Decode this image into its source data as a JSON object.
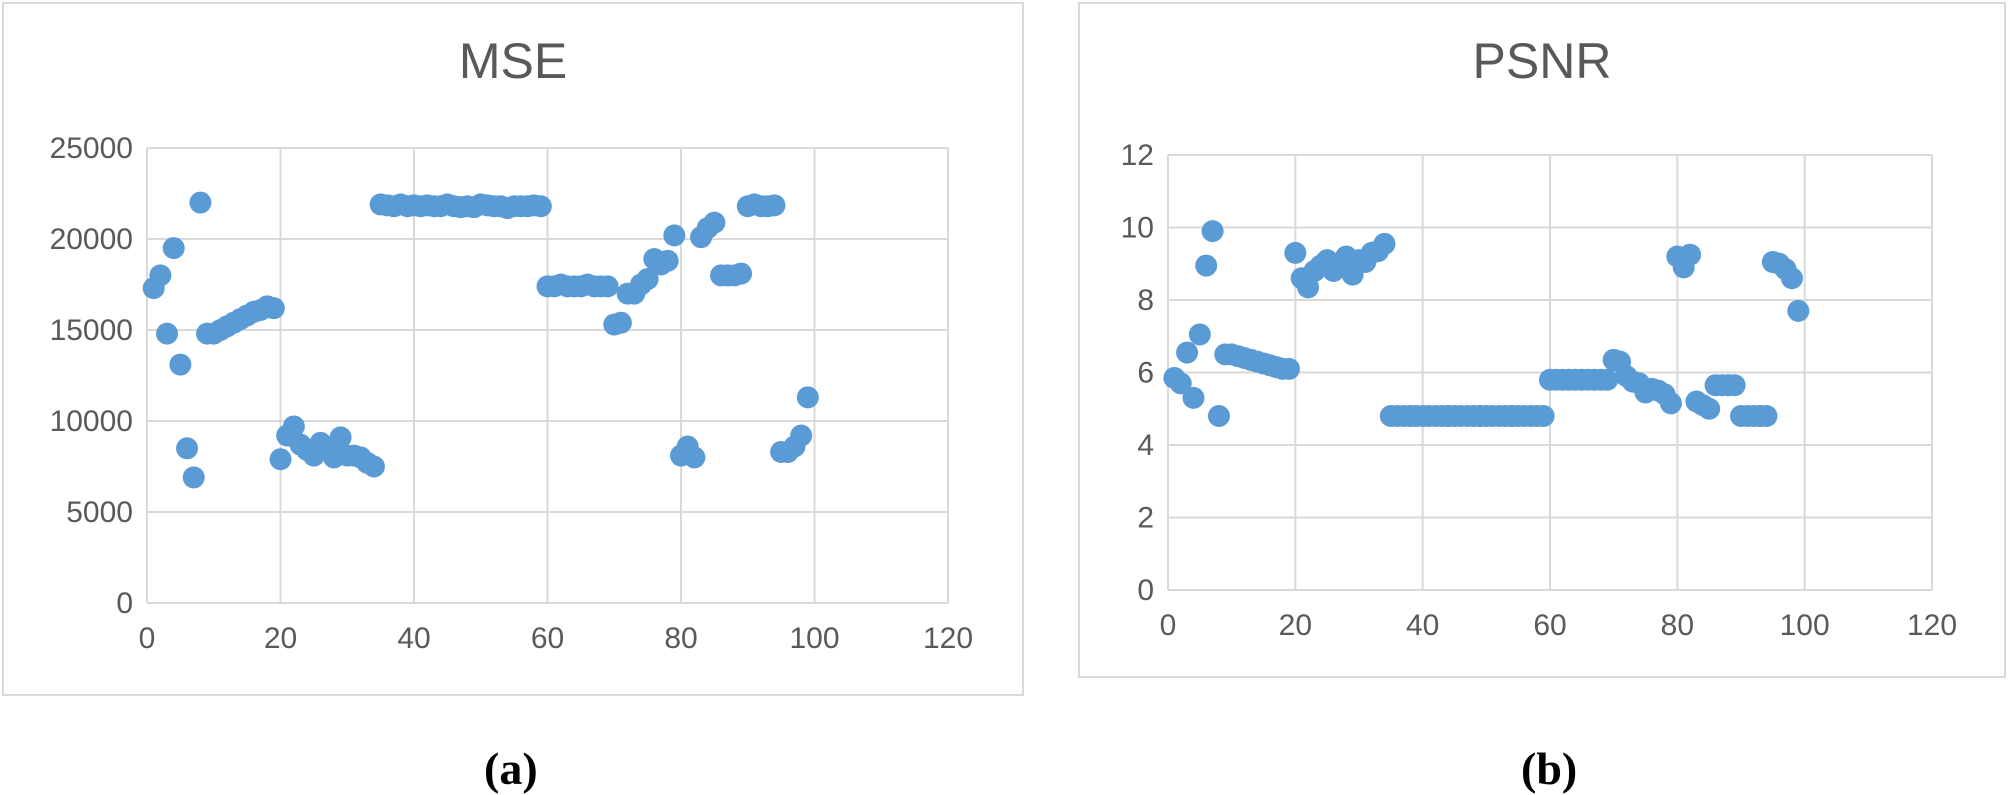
{
  "chart_data": [
    {
      "type": "scatter",
      "title": "MSE",
      "caption": "(a)",
      "xlim": [
        0,
        120
      ],
      "ylim": [
        0,
        25000
      ],
      "xticks": [
        0,
        20,
        40,
        60,
        80,
        100,
        120
      ],
      "yticks": [
        0,
        5000,
        10000,
        15000,
        20000,
        25000
      ],
      "grid": true,
      "marker_color": "#5b9bd5",
      "x": [
        1,
        2,
        3,
        4,
        5,
        6,
        7,
        8,
        9,
        10,
        11,
        12,
        13,
        14,
        15,
        16,
        17,
        18,
        19,
        20,
        21,
        22,
        23,
        24,
        25,
        26,
        27,
        28,
        29,
        30,
        31,
        32,
        33,
        34,
        35,
        36,
        37,
        38,
        39,
        40,
        41,
        42,
        43,
        44,
        45,
        46,
        47,
        48,
        49,
        50,
        51,
        52,
        53,
        54,
        55,
        56,
        57,
        58,
        59,
        60,
        61,
        62,
        63,
        64,
        65,
        66,
        67,
        68,
        69,
        70,
        71,
        72,
        73,
        74,
        75,
        76,
        77,
        78,
        79,
        80,
        81,
        82,
        83,
        84,
        85,
        86,
        87,
        88,
        89,
        90,
        91,
        92,
        93,
        94,
        95,
        96,
        97,
        98,
        99
      ],
      "y": [
        17300,
        18000,
        14800,
        19500,
        13100,
        8500,
        6900,
        22000,
        14800,
        14800,
        15000,
        15200,
        15400,
        15600,
        15800,
        16000,
        16100,
        16300,
        16200,
        7900,
        9200,
        9700,
        8700,
        8400,
        8100,
        8800,
        8400,
        8000,
        9100,
        8100,
        8100,
        8000,
        7700,
        7500,
        21900,
        21850,
        21800,
        21900,
        21800,
        21850,
        21800,
        21850,
        21800,
        21800,
        21900,
        21800,
        21750,
        21800,
        21750,
        21900,
        21850,
        21800,
        21800,
        21700,
        21800,
        21800,
        21800,
        21850,
        21800,
        17400,
        17400,
        17500,
        17400,
        17400,
        17400,
        17500,
        17400,
        17400,
        17400,
        15300,
        15400,
        17000,
        17000,
        17500,
        17800,
        18900,
        18600,
        18800,
        20200,
        8100,
        8600,
        8000,
        20100,
        20600,
        20900,
        18000,
        18000,
        18000,
        18100,
        21800,
        21900,
        21800,
        21800,
        21850,
        8300,
        8300,
        8600,
        9200,
        11300
      ]
    },
    {
      "type": "scatter",
      "title": "PSNR",
      "caption": "(b)",
      "xlim": [
        0,
        120
      ],
      "ylim": [
        0,
        12
      ],
      "xticks": [
        0,
        20,
        40,
        60,
        80,
        100,
        120
      ],
      "yticks": [
        0,
        2,
        4,
        6,
        8,
        10,
        12
      ],
      "grid": true,
      "marker_color": "#5b9bd5",
      "x": [
        1,
        2,
        3,
        4,
        5,
        6,
        7,
        8,
        9,
        10,
        11,
        12,
        13,
        14,
        15,
        16,
        17,
        18,
        19,
        20,
        21,
        22,
        23,
        24,
        25,
        26,
        27,
        28,
        29,
        30,
        31,
        32,
        33,
        34,
        35,
        36,
        37,
        38,
        39,
        40,
        41,
        42,
        43,
        44,
        45,
        46,
        47,
        48,
        49,
        50,
        51,
        52,
        53,
        54,
        55,
        56,
        57,
        58,
        59,
        60,
        61,
        62,
        63,
        64,
        65,
        66,
        67,
        68,
        69,
        70,
        71,
        72,
        73,
        74,
        75,
        76,
        77,
        78,
        79,
        80,
        81,
        82,
        83,
        84,
        85,
        86,
        87,
        88,
        89,
        90,
        91,
        92,
        93,
        94,
        95,
        96,
        97,
        98,
        99
      ],
      "y": [
        5.85,
        5.7,
        6.55,
        5.3,
        7.05,
        8.95,
        9.9,
        4.8,
        6.5,
        6.5,
        6.45,
        6.4,
        6.35,
        6.3,
        6.25,
        6.2,
        6.15,
        6.1,
        6.1,
        9.3,
        8.6,
        8.35,
        8.8,
        8.95,
        9.1,
        8.8,
        8.95,
        9.2,
        8.7,
        9.1,
        9.05,
        9.3,
        9.35,
        9.55,
        4.8,
        4.8,
        4.8,
        4.8,
        4.8,
        4.8,
        4.8,
        4.8,
        4.8,
        4.8,
        4.8,
        4.8,
        4.8,
        4.8,
        4.8,
        4.8,
        4.8,
        4.8,
        4.8,
        4.8,
        4.8,
        4.8,
        4.8,
        4.8,
        4.8,
        5.8,
        5.8,
        5.8,
        5.8,
        5.8,
        5.8,
        5.8,
        5.8,
        5.8,
        5.8,
        6.35,
        6.3,
        5.9,
        5.75,
        5.7,
        5.45,
        5.55,
        5.5,
        5.4,
        5.15,
        9.2,
        8.9,
        9.25,
        5.2,
        5.1,
        5.0,
        5.65,
        5.65,
        5.65,
        5.65,
        4.8,
        4.8,
        4.8,
        4.8,
        4.8,
        9.05,
        9.0,
        8.85,
        8.6,
        7.7
      ]
    }
  ]
}
